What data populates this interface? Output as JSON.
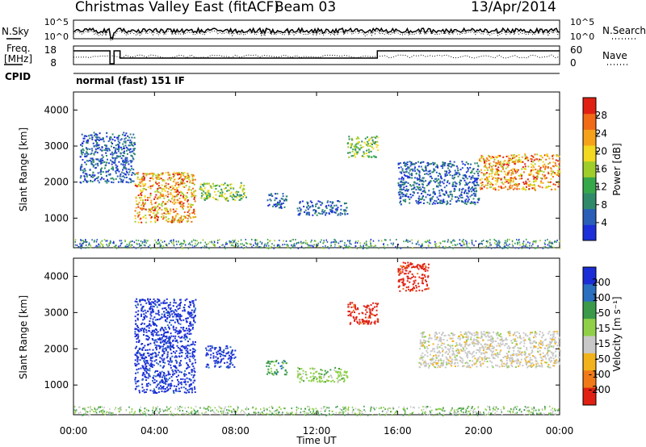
{
  "header": {
    "title": "Christmas Valley East (fitACF)",
    "beam": "Beam 03",
    "date": "13/Apr/2014"
  },
  "noise_panel": {
    "left_label": "N.Sky",
    "right_label": "N.Search",
    "left_ticks": [
      "10^5",
      "10^0"
    ],
    "right_ticks": [
      "10^5",
      "10^0"
    ]
  },
  "freq_panel": {
    "left_label_1": "Freq.",
    "left_label_2": "[MHz]",
    "right_label": "Nave",
    "left_ticks": [
      "18",
      "8"
    ],
    "right_ticks": [
      "60",
      "0"
    ]
  },
  "cpid_panel": {
    "label": "CPID",
    "text": "normal (fast) 151 IF"
  },
  "time_axis": {
    "label": "Time UT",
    "ticks": [
      "00:00",
      "04:00",
      "08:00",
      "12:00",
      "16:00",
      "20:00",
      "00:00"
    ]
  },
  "range_axis": {
    "label": "Slant Range [km]",
    "ticks": [
      "1000",
      "2000",
      "3000",
      "4000"
    ]
  },
  "power_scale": {
    "label": "Power [dB]",
    "ticks": [
      "4",
      "8",
      "12",
      "16",
      "20",
      "24",
      "28"
    ],
    "colors": [
      "#1c2fd8",
      "#2a5fb8",
      "#2f8a6a",
      "#37a84a",
      "#9fce2a",
      "#f2d81e",
      "#f5a21a",
      "#f06a18",
      "#e02012"
    ]
  },
  "velocity_scale": {
    "label": "Velocity [m s⁻¹]",
    "ticks": [
      "200",
      "100",
      "50",
      "15",
      "-15",
      "-50",
      "-100",
      "-200"
    ],
    "colors": [
      "#1a2dd6",
      "#2a6fc0",
      "#3a9a4a",
      "#8fd048",
      "#c8c8c8",
      "#f2b21a",
      "#f07a18",
      "#e02012"
    ]
  },
  "chart_data": {
    "type": "heatmap",
    "x_range": [
      "00:00",
      "00:00"
    ],
    "y_range_km": [
      180,
      4500
    ],
    "power_regions": [
      {
        "t0": 0.3,
        "t1": 3.0,
        "r0": 2000,
        "r1": 3400,
        "level": "low"
      },
      {
        "t0": 3.0,
        "t1": 6.0,
        "r0": 900,
        "r1": 2300,
        "level": "high"
      },
      {
        "t0": 6.2,
        "t1": 8.5,
        "r0": 1500,
        "r1": 2000,
        "level": "mid"
      },
      {
        "t0": 9.5,
        "t1": 10.5,
        "r0": 1300,
        "r1": 1700,
        "level": "low"
      },
      {
        "t0": 11.0,
        "t1": 13.5,
        "r0": 1100,
        "r1": 1500,
        "level": "low"
      },
      {
        "t0": 13.5,
        "t1": 15.0,
        "r0": 2700,
        "r1": 3300,
        "level": "mid"
      },
      {
        "t0": 16.0,
        "t1": 20.0,
        "r0": 1400,
        "r1": 2600,
        "level": "low"
      },
      {
        "t0": 20.0,
        "t1": 24.0,
        "r0": 1800,
        "r1": 2800,
        "level": "high"
      }
    ],
    "velocity_regions": [
      {
        "t0": 3.0,
        "t1": 6.0,
        "r0": 800,
        "r1": 3400,
        "velocity": 200
      },
      {
        "t0": 6.5,
        "t1": 8.0,
        "r0": 1500,
        "r1": 2100,
        "velocity": 200
      },
      {
        "t0": 9.5,
        "t1": 10.5,
        "r0": 1300,
        "r1": 1700,
        "velocity": 50
      },
      {
        "t0": 11.0,
        "t1": 13.5,
        "r0": 1100,
        "r1": 1500,
        "velocity": 15
      },
      {
        "t0": 13.5,
        "t1": 15.0,
        "r0": 2700,
        "r1": 3300,
        "velocity": -200
      },
      {
        "t0": 16.0,
        "t1": 17.5,
        "r0": 3600,
        "r1": 4400,
        "velocity": -200
      },
      {
        "t0": 17.0,
        "t1": 24.0,
        "r0": 1500,
        "r1": 2500,
        "velocity": 0
      }
    ]
  }
}
